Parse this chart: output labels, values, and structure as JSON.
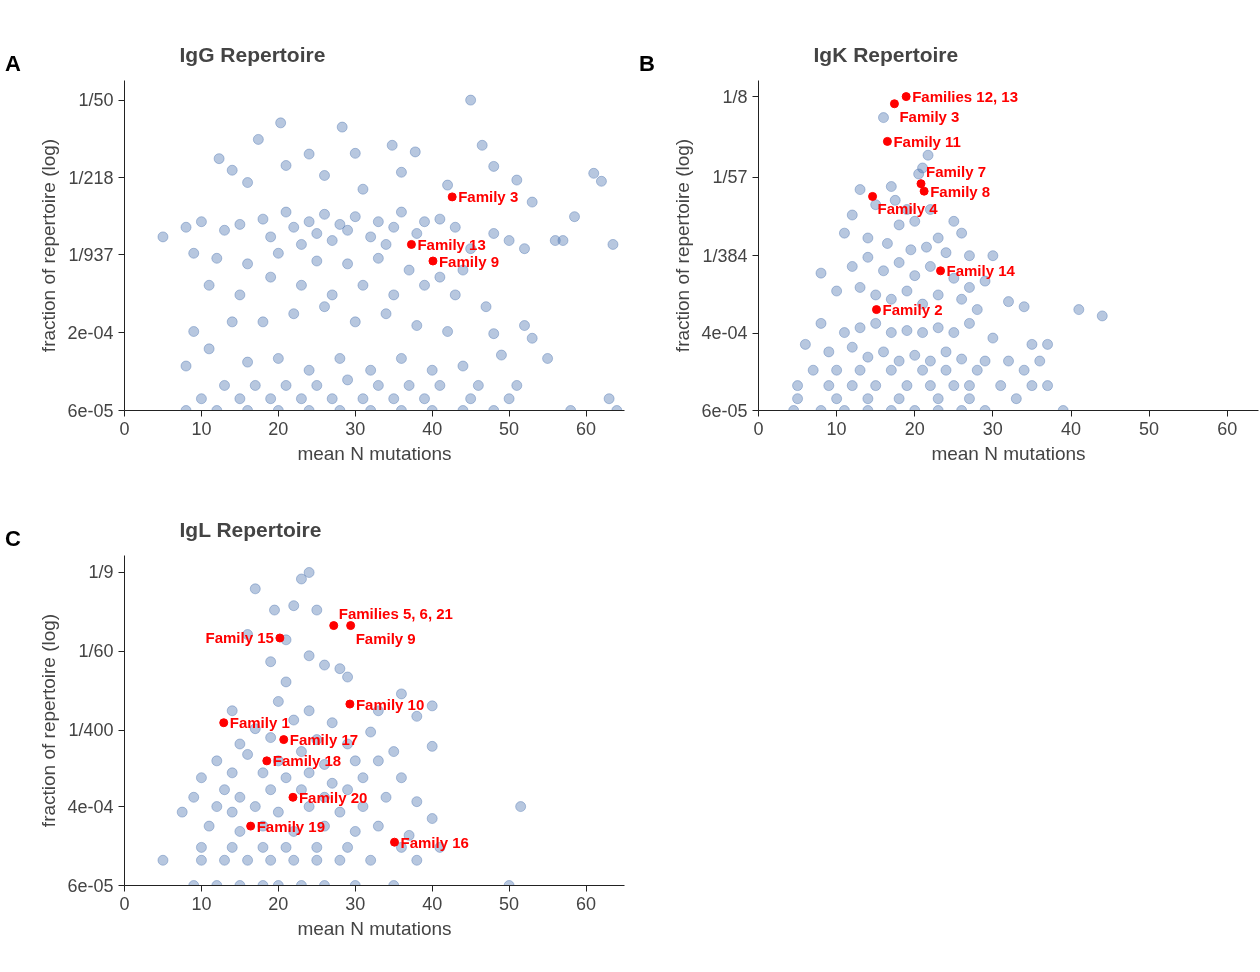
{
  "chart_data": [
    {
      "type": "scatter",
      "title": "IgG Repertoire",
      "xlabel": "mean N mutations",
      "ylabel": "fraction of repertoire (log)",
      "log": "y",
      "marker": "circle",
      "xlim": [
        0,
        65
      ],
      "ylim": [
        5.6e-05,
        0.029
      ],
      "xticks": [
        0,
        10,
        20,
        30,
        40,
        50,
        60
      ],
      "yticks": [
        {
          "value": 0.02,
          "label": "1/50"
        },
        {
          "value": 0.00459,
          "label": "1/218"
        },
        {
          "value": 0.00107,
          "label": "1/937"
        },
        {
          "value": 0.000245,
          "label": "2e-04"
        },
        {
          "value": 5.6e-05,
          "label": "6e-05"
        }
      ],
      "annotations": [
        "A",
        {
          "text": "Family 3",
          "x": 42.6,
          "y": 0.0032
        },
        {
          "text": "Family 13",
          "x": 37.3,
          "y": 0.0013
        },
        {
          "text": "Family 9",
          "x": 40.1,
          "y": 0.00095
        }
      ],
      "series": [
        {
          "color": "#4c72b0",
          "x": [
            45,
            20.3,
            28.3,
            17.4,
            34.8,
            46.5,
            12.3,
            24,
            30,
            37.8,
            48,
            62,
            61,
            14,
            21,
            36,
            51,
            26,
            16,
            31,
            42,
            53,
            58.5,
            63.5,
            5,
            8,
            10,
            13,
            15,
            18,
            19,
            21,
            22,
            23,
            24,
            25,
            26,
            27,
            28,
            29,
            30,
            32,
            33,
            34,
            35,
            36,
            38,
            39,
            41,
            43,
            45,
            48,
            50,
            52,
            56,
            57,
            9,
            12,
            16,
            20,
            25,
            29,
            33,
            37,
            41,
            44,
            11,
            15,
            19,
            23,
            27,
            31,
            35,
            39,
            43,
            47,
            9,
            14,
            18,
            22,
            26,
            30,
            34,
            38,
            42,
            48,
            52,
            53,
            11,
            16,
            20,
            24,
            28,
            32,
            36,
            40,
            44,
            49,
            55,
            8,
            13,
            17,
            21,
            25,
            29,
            33,
            37,
            41,
            46,
            51,
            63,
            10,
            15,
            19,
            23,
            27,
            31,
            35,
            39,
            45,
            50,
            8,
            12,
            16,
            20,
            24,
            28,
            32,
            36,
            40,
            44,
            48,
            58,
            64
          ],
          "values": [
            0.02,
            0.013,
            0.012,
            0.0095,
            0.0085,
            0.0085,
            0.0066,
            0.0072,
            0.0073,
            0.0075,
            0.0057,
            0.0043,
            0.005,
            0.0053,
            0.0058,
            0.0051,
            0.0044,
            0.0048,
            0.0042,
            0.0037,
            0.004,
            0.0029,
            0.0022,
            0.0013,
            0.0015,
            0.0018,
            0.002,
            0.0017,
            0.0019,
            0.0021,
            0.0015,
            0.0024,
            0.0018,
            0.0013,
            0.002,
            0.0016,
            0.0023,
            0.0014,
            0.0019,
            0.0017,
            0.0022,
            0.0015,
            0.002,
            0.0013,
            0.0018,
            0.0024,
            0.0016,
            0.002,
            0.0021,
            0.0018,
            0.0012,
            0.0016,
            0.0014,
            0.0012,
            0.0014,
            0.0014,
            0.0011,
            0.001,
            0.0009,
            0.0011,
            0.00095,
            0.0009,
            0.001,
            0.0008,
            0.0007,
            0.0008,
            0.0006,
            0.0005,
            0.0007,
            0.0006,
            0.0005,
            0.0006,
            0.0005,
            0.0006,
            0.0005,
            0.0004,
            0.00025,
            0.0003,
            0.0003,
            0.00035,
            0.0004,
            0.0003,
            0.00035,
            0.00028,
            0.00025,
            0.00024,
            0.00028,
            0.00022,
            0.00018,
            0.00014,
            0.00015,
            0.00012,
            0.00015,
            0.00012,
            0.00015,
            0.00012,
            0.00013,
            0.00016,
            0.00015,
            0.00013,
            9e-05,
            9e-05,
            9e-05,
            9e-05,
            0.0001,
            9e-05,
            9e-05,
            9e-05,
            9e-05,
            9e-05,
            7e-05,
            7e-05,
            7e-05,
            7e-05,
            7e-05,
            7e-05,
            7e-05,
            7e-05,
            7e-05,
            7e-05,
            7e-05,
            5.6e-05,
            5.6e-05,
            5.6e-05,
            5.6e-05,
            5.6e-05,
            5.6e-05,
            5.6e-05,
            5.6e-05,
            5.6e-05,
            5.6e-05,
            5.6e-05,
            5.6e-05,
            5.6e-05
          ]
        },
        {
          "color": "#ff0000",
          "x": [
            42.6,
            37.3,
            40.1
          ],
          "values": [
            0.0032,
            0.0013,
            0.00095
          ]
        }
      ]
    },
    {
      "type": "scatter",
      "title": "IgK Repertoire",
      "xlabel": "mean N mutations",
      "ylabel": "fraction of repertoire (log)",
      "log": "y",
      "marker": "circle",
      "xlim": [
        0,
        64
      ],
      "ylim": [
        6e-05,
        0.185
      ],
      "xticks": [
        0,
        10,
        20,
        30,
        40,
        50,
        60
      ],
      "yticks": [
        {
          "value": 0.125,
          "label": "1/8"
        },
        {
          "value": 0.01754,
          "label": "1/57"
        },
        {
          "value": 0.0026,
          "label": "1/384"
        },
        {
          "value": 0.000395,
          "label": "4e-04"
        },
        {
          "value": 6e-05,
          "label": "6e-05"
        }
      ],
      "annotations": [
        "B",
        {
          "text": "Families 12, 13",
          "x": 18.9,
          "y": 0.125
        },
        {
          "text": "Family 3",
          "x": 17.4,
          "y": 0.105
        },
        {
          "text": "Family 11",
          "x": 16.5,
          "y": 0.042
        },
        {
          "text": "Family 7",
          "x": 20.8,
          "y": 0.015
        },
        {
          "text": "Family 8",
          "x": 21.2,
          "y": 0.0125
        },
        {
          "text": "Family 4",
          "x": 14.6,
          "y": 0.011
        },
        {
          "text": "Family 14",
          "x": 23.3,
          "y": 0.0018
        },
        {
          "text": "Family 2",
          "x": 15.1,
          "y": 0.0007
        }
      ],
      "series": [
        {
          "color": "#4c72b0",
          "x": [
            16,
            21.7,
            21,
            20.5,
            17,
            13,
            15,
            17.5,
            19,
            22,
            25,
            12,
            18,
            20,
            23,
            26,
            11,
            14,
            16.5,
            19.5,
            21.5,
            24,
            27,
            30,
            8,
            12,
            14,
            16,
            18,
            20,
            22,
            25,
            27,
            29,
            10,
            13,
            15,
            17,
            19,
            21,
            23,
            26,
            28,
            32,
            34,
            41,
            44,
            8,
            11,
            13,
            15,
            17,
            19,
            21,
            23,
            25,
            27,
            30,
            35,
            37,
            6,
            9,
            12,
            14,
            16,
            18,
            20,
            22,
            24,
            26,
            29,
            32,
            36,
            7,
            10,
            13,
            17,
            21,
            24,
            28,
            34,
            5,
            9,
            12,
            15,
            19,
            22,
            25,
            27,
            31,
            35,
            37,
            5,
            10,
            14,
            18,
            23,
            27,
            33,
            4.5,
            8,
            11,
            14,
            17,
            20,
            23,
            26,
            29,
            39
          ],
          "values": [
            0.075,
            0.03,
            0.022,
            0.019,
            0.014,
            0.013,
            0.009,
            0.01,
            0.008,
            0.008,
            0.006,
            0.007,
            0.0055,
            0.006,
            0.004,
            0.0045,
            0.0045,
            0.004,
            0.0035,
            0.003,
            0.0032,
            0.0028,
            0.0026,
            0.0026,
            0.0017,
            0.002,
            0.0025,
            0.0018,
            0.0022,
            0.0016,
            0.002,
            0.0015,
            0.0012,
            0.0014,
            0.0011,
            0.0012,
            0.001,
            0.0009,
            0.0011,
            0.0008,
            0.001,
            0.0009,
            0.0007,
            0.00085,
            0.00075,
            0.0007,
            0.0006,
            0.0005,
            0.0004,
            0.00045,
            0.0005,
            0.0004,
            0.00042,
            0.0004,
            0.00045,
            0.0004,
            0.0005,
            0.00035,
            0.0003,
            0.0003,
            0.0003,
            0.00025,
            0.00028,
            0.00022,
            0.00025,
            0.0002,
            0.00023,
            0.0002,
            0.00025,
            0.00021,
            0.0002,
            0.0002,
            0.0002,
            0.00016,
            0.00016,
            0.00016,
            0.00016,
            0.00016,
            0.00016,
            0.00016,
            0.00016,
            0.00011,
            0.00011,
            0.00011,
            0.00011,
            0.00011,
            0.00011,
            0.00011,
            0.00011,
            0.00011,
            0.00011,
            0.00011,
            8e-05,
            8e-05,
            8e-05,
            8e-05,
            8e-05,
            8e-05,
            8e-05,
            6e-05,
            6e-05,
            6e-05,
            6e-05,
            6e-05,
            6e-05,
            6e-05,
            6e-05,
            6e-05,
            6e-05
          ]
        },
        {
          "color": "#ff0000",
          "x": [
            18.9,
            17.4,
            16.5,
            20.8,
            21.2,
            14.6,
            23.3,
            15.1
          ],
          "values": [
            0.125,
            0.105,
            0.042,
            0.015,
            0.0125,
            0.011,
            0.0018,
            0.0007
          ]
        }
      ]
    },
    {
      "type": "scatter",
      "title": "IgL Repertoire",
      "xlabel": "mean N mutations",
      "ylabel": "fraction of repertoire (log)",
      "log": "y",
      "marker": "circle",
      "xlim": [
        0,
        65
      ],
      "ylim": [
        6e-05,
        0.167
      ],
      "xticks": [
        0,
        10,
        20,
        30,
        40,
        50,
        60
      ],
      "yticks": [
        {
          "value": 0.111,
          "label": "1/9"
        },
        {
          "value": 0.0167,
          "label": "1/60"
        },
        {
          "value": 0.0025,
          "label": "1/400"
        },
        {
          "value": 0.0004,
          "label": "4e-04"
        },
        {
          "value": 6e-05,
          "label": "6e-05"
        }
      ],
      "annotations": [
        "C",
        {
          "text": "Families 5, 6, 21",
          "x": 27.2,
          "y": 0.031
        },
        {
          "text": "Family 9",
          "x": 29.4,
          "y": 0.031
        },
        {
          "text": "Family 15",
          "x": 20.2,
          "y": 0.023
        },
        {
          "text": "Family 10",
          "x": 29.3,
          "y": 0.0047
        },
        {
          "text": "Family 1",
          "x": 12.9,
          "y": 0.003
        },
        {
          "text": "Family 17",
          "x": 20.7,
          "y": 0.002
        },
        {
          "text": "Family 18",
          "x": 18.5,
          "y": 0.0012
        },
        {
          "text": "Family 20",
          "x": 21.9,
          "y": 0.0005
        },
        {
          "text": "Family 19",
          "x": 16.4,
          "y": 0.00025
        },
        {
          "text": "Family 16",
          "x": 35.1,
          "y": 0.00017
        }
      ],
      "series": [
        {
          "color": "#4c72b0",
          "x": [
            24,
            23,
            17,
            22,
            19.5,
            25,
            16,
            21,
            24,
            19,
            26,
            29,
            28,
            21,
            36,
            40,
            20,
            33,
            24,
            38,
            14,
            17,
            22,
            27,
            32,
            40,
            15,
            19,
            25,
            29,
            35,
            12,
            16,
            20,
            23,
            26,
            30,
            33,
            10,
            14,
            18,
            21,
            24,
            27,
            31,
            36,
            9,
            13,
            15,
            19,
            23,
            26,
            29,
            34,
            38,
            51.5,
            7.5,
            12,
            14,
            17,
            20,
            24,
            28,
            31,
            40,
            11,
            15,
            18,
            22,
            26,
            30,
            33,
            37,
            10,
            14,
            18,
            21,
            25,
            29,
            36,
            41,
            5,
            10,
            13,
            16,
            19,
            22,
            25,
            28,
            32,
            38,
            9,
            12,
            15,
            18,
            20,
            23,
            26,
            30,
            35,
            50
          ],
          "values": [
            0.111,
            0.095,
            0.075,
            0.05,
            0.045,
            0.045,
            0.025,
            0.022,
            0.015,
            0.013,
            0.012,
            0.009,
            0.011,
            0.008,
            0.006,
            0.0045,
            0.005,
            0.004,
            0.004,
            0.0035,
            0.004,
            0.0026,
            0.0032,
            0.003,
            0.0024,
            0.0017,
            0.0018,
            0.0021,
            0.002,
            0.0018,
            0.0015,
            0.0012,
            0.0014,
            0.0012,
            0.0015,
            0.0011,
            0.0012,
            0.0012,
            0.0008,
            0.0009,
            0.0009,
            0.0008,
            0.0009,
            0.0007,
            0.0008,
            0.0008,
            0.0005,
            0.0006,
            0.0005,
            0.0006,
            0.0006,
            0.0005,
            0.0006,
            0.0005,
            0.00045,
            0.0004,
            0.00035,
            0.0004,
            0.00035,
            0.0004,
            0.00035,
            0.0004,
            0.00035,
            0.0004,
            0.0003,
            0.00025,
            0.00022,
            0.00025,
            0.00022,
            0.00025,
            0.00022,
            0.00025,
            0.0002,
            0.00015,
            0.00015,
            0.00015,
            0.00015,
            0.00015,
            0.00015,
            0.00015,
            0.00015,
            0.00011,
            0.00011,
            0.00011,
            0.00011,
            0.00011,
            0.00011,
            0.00011,
            0.00011,
            0.00011,
            0.00011,
            6e-05,
            6e-05,
            6e-05,
            6e-05,
            6e-05,
            6e-05,
            6e-05,
            6e-05,
            6e-05,
            6e-05
          ]
        },
        {
          "color": "#ff0000",
          "x": [
            27.2,
            29.4,
            20.2,
            29.3,
            12.9,
            20.7,
            18.5,
            21.9,
            16.4,
            35.1
          ],
          "values": [
            0.031,
            0.031,
            0.023,
            0.0047,
            0.003,
            0.002,
            0.0012,
            0.0005,
            0.00025,
            0.00017
          ]
        }
      ]
    }
  ]
}
